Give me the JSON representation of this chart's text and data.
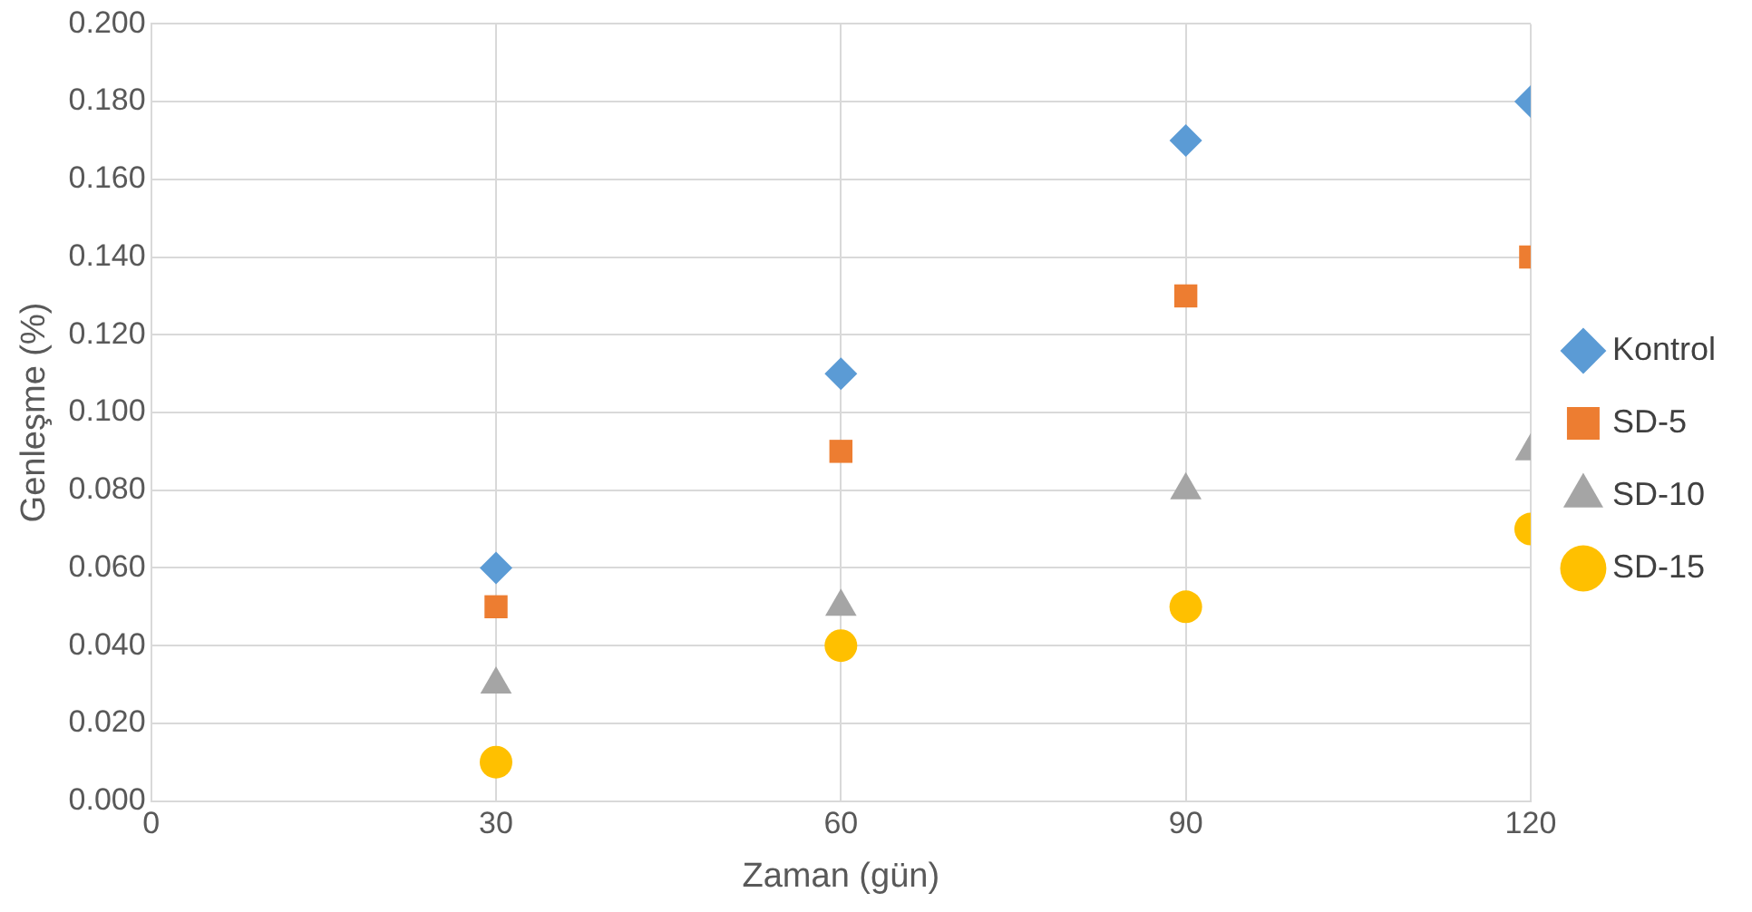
{
  "chart_data": {
    "type": "scatter",
    "xlabel": "Zaman (gün)",
    "ylabel": "Genleşme (%)",
    "x": [
      30,
      60,
      90,
      120
    ],
    "series": [
      {
        "name": "Kontrol",
        "color": "#5b9bd5",
        "marker": "diamond",
        "values": [
          0.06,
          0.11,
          0.17,
          0.18
        ]
      },
      {
        "name": "SD-5",
        "color": "#ed7d31",
        "marker": "square",
        "values": [
          0.05,
          0.09,
          0.13,
          0.14
        ]
      },
      {
        "name": "SD-10",
        "color": "#a5a5a5",
        "marker": "triangle",
        "values": [
          0.03,
          0.05,
          0.08,
          0.09
        ]
      },
      {
        "name": "SD-15",
        "color": "#ffc000",
        "marker": "circle",
        "values": [
          0.01,
          0.04,
          0.05,
          0.07
        ]
      }
    ],
    "xlim": [
      0,
      120
    ],
    "xticks": [
      0,
      30,
      60,
      90,
      120
    ],
    "ylim": [
      0,
      0.2
    ],
    "yticks": [
      {
        "value": 0,
        "label": "0.000"
      },
      {
        "value": 0.02,
        "label": "0.020"
      },
      {
        "value": 0.04,
        "label": "0.040"
      },
      {
        "value": 0.06,
        "label": "0.060"
      },
      {
        "value": 0.08,
        "label": "0.080"
      },
      {
        "value": 0.1,
        "label": "0.100"
      },
      {
        "value": 0.12,
        "label": "0.120"
      },
      {
        "value": 0.14,
        "label": "0.140"
      },
      {
        "value": 0.16,
        "label": "0.160"
      },
      {
        "value": 0.18,
        "label": "0.180"
      },
      {
        "value": 0.2,
        "label": "0.200"
      }
    ],
    "grid": true,
    "legend": "right"
  }
}
